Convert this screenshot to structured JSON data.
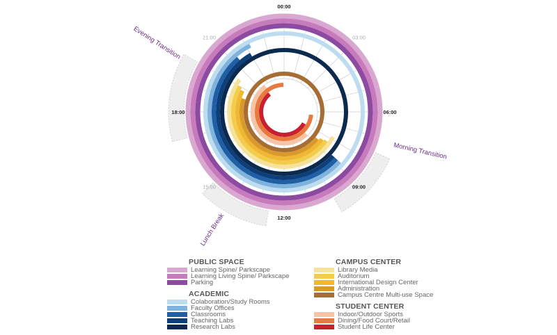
{
  "chart_data": {
    "type": "radial-timeline",
    "time_labels": [
      {
        "text": "00:00",
        "hour": 0,
        "style": "major"
      },
      {
        "text": "03:00",
        "hour": 3,
        "style": "minor"
      },
      {
        "text": "06:00",
        "hour": 6,
        "style": "major"
      },
      {
        "text": "09:00",
        "hour": 9,
        "style": "major"
      },
      {
        "text": "12:00",
        "hour": 12,
        "style": "major"
      },
      {
        "text": "15:00",
        "hour": 15,
        "style": "minor"
      },
      {
        "text": "18:00",
        "hour": 18,
        "style": "major"
      },
      {
        "text": "21:00",
        "hour": 21,
        "style": "minor"
      }
    ],
    "transitions": [
      {
        "label": "Morning Transition",
        "start": 7.6,
        "end": 10.0
      },
      {
        "label": "Lunch Break",
        "start": 12.6,
        "end": 15.0
      },
      {
        "label": "Evening Transition",
        "start": 17.0,
        "end": 20.0
      }
    ],
    "groups": [
      {
        "name": "PUBLIC SPACE",
        "series": [
          {
            "name": "Learning Spine/ Parkscape",
            "color": "#d9a8d0",
            "start": 0,
            "end": 24
          },
          {
            "name": "Learning Living Spine/ Parkscape",
            "color": "#c77bbd",
            "start": 0,
            "end": 24
          },
          {
            "name": "Parking",
            "color": "#8c4aa0",
            "start": 0,
            "end": 24
          }
        ]
      },
      {
        "name": "ACADEMIC",
        "series": [
          {
            "name": "Colaboration/Study Rooms",
            "color": "#bddcf0",
            "start": 0,
            "end": 24
          },
          {
            "name": "Faculty Offices",
            "color": "#7fb3dc",
            "start": 8.8,
            "end": 22.2
          },
          {
            "name": "Classrooms",
            "color": "#1f5fa6",
            "start": 8.8,
            "end": 21.3
          },
          {
            "name": "Teaching Labs",
            "color": "#0d3f7a",
            "start": 8.8,
            "end": 22.0
          },
          {
            "name": "Research Labs",
            "color": "#0b2a4e",
            "start": 0,
            "end": 24
          }
        ]
      },
      {
        "name": "CAMPUS CENTER",
        "series": [
          {
            "name": "Library Media",
            "color": "#f6e39b",
            "start": 7.8,
            "end": 20.4
          },
          {
            "name": "Auditorium",
            "color": "#f2cc4a",
            "start": 8.3,
            "end": 20.0
          },
          {
            "name": "International Design Center",
            "color": "#efb733",
            "start": 8.4,
            "end": 19.8
          },
          {
            "name": "Administration",
            "color": "#d99a2b",
            "start": 8.6,
            "end": 19.2
          },
          {
            "name": "Campus Centre Multi-use Space",
            "color": "#a66d35",
            "start": 0,
            "end": 24
          }
        ]
      },
      {
        "name": "STUDENT CENTER",
        "series": [
          {
            "name": "Indoor/Outdoor Sports",
            "color": "#f7c4a6",
            "start": 9.0,
            "end": 21.6
          },
          {
            "name": "Dining/Food Court/Retail",
            "color": "#e8793f",
            "start": 6.4,
            "end": 23.9
          },
          {
            "name": "Student Life Center",
            "color": "#c9202f",
            "start": 8.0,
            "end": 21.4
          }
        ]
      }
    ],
    "colors": {
      "major_label": "#222222",
      "minor_label": "#aaaaaa",
      "transition_label": "#6b2d87",
      "transition_fill": "#eeeeee",
      "grid": "#cccccc"
    }
  }
}
